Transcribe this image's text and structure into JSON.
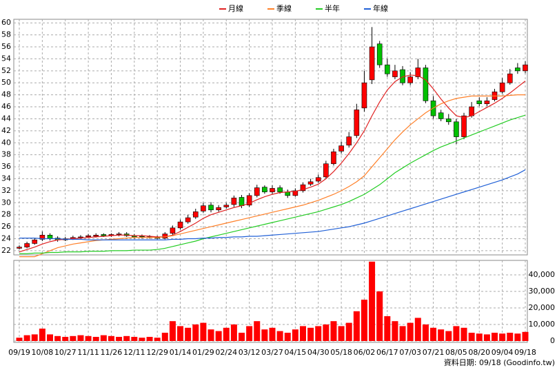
{
  "chart_data": [
    {
      "type": "candlestick",
      "open": [
        22.4,
        22.6,
        23.2,
        23.9,
        24.6,
        24.1,
        23.8,
        24.0,
        24.2,
        24.3,
        24.4,
        24.7,
        24.5,
        24.7,
        24.8,
        24.5,
        24.4,
        24.3,
        24.2,
        24.1,
        24.9,
        25.8,
        26.8,
        27.6,
        28.6,
        29.6,
        28.8,
        29.3,
        29.7,
        30.9,
        29.6,
        31.2,
        32.6,
        31.8,
        32.5,
        31.8,
        31.2,
        32.0,
        33.1,
        33.6,
        34.3,
        36.5,
        38.6,
        39.6,
        41.2,
        45.8,
        50.5,
        56.5,
        53.0,
        51.0,
        52.2,
        50.0,
        51.0,
        52.5,
        47.0,
        45.0,
        44.0,
        43.5,
        41.0,
        44.5,
        47.0,
        46.5,
        47.2,
        48.5,
        50.0,
        52.5,
        52.0
      ],
      "high": [
        22.9,
        23.5,
        24.1,
        25.2,
        24.9,
        24.4,
        24.3,
        24.5,
        24.6,
        24.8,
        24.9,
        24.9,
        24.9,
        25.1,
        25.1,
        24.8,
        24.7,
        24.6,
        24.5,
        25.1,
        26.2,
        27.2,
        28.0,
        29.0,
        30.0,
        30.1,
        29.6,
        30.0,
        31.2,
        31.3,
        31.6,
        33.0,
        32.9,
        32.9,
        32.9,
        32.2,
        32.4,
        33.4,
        34.0,
        34.7,
        37.0,
        39.0,
        40.2,
        41.8,
        46.5,
        52.0,
        59.3,
        57.0,
        54.0,
        53.0,
        52.8,
        51.8,
        54.0,
        53.0,
        47.8,
        45.5,
        44.8,
        44.0,
        45.0,
        46.8,
        47.6,
        47.6,
        49.0,
        50.8,
        52.3,
        53.3,
        53.6
      ],
      "low": [
        22.2,
        22.4,
        23.0,
        23.6,
        23.7,
        23.5,
        23.6,
        23.8,
        24.0,
        24.1,
        24.2,
        24.3,
        24.3,
        24.4,
        24.3,
        24.0,
        24.0,
        24.0,
        23.9,
        23.9,
        24.6,
        25.5,
        26.5,
        27.3,
        28.3,
        28.4,
        28.5,
        29.0,
        29.3,
        29.1,
        29.3,
        30.9,
        31.5,
        31.4,
        31.5,
        30.8,
        31.0,
        31.7,
        32.8,
        33.3,
        34.0,
        36.2,
        38.2,
        39.2,
        40.8,
        45.2,
        49.8,
        52.5,
        51.0,
        50.6,
        49.6,
        49.6,
        50.6,
        46.6,
        44.0,
        43.6,
        43.0,
        39.8,
        40.6,
        44.2,
        46.1,
        46.1,
        46.9,
        48.2,
        49.7,
        51.5,
        51.6
      ],
      "close": [
        22.6,
        23.2,
        23.8,
        24.6,
        24.0,
        23.8,
        24.0,
        24.2,
        24.3,
        24.5,
        24.6,
        24.5,
        24.7,
        24.8,
        24.5,
        24.3,
        24.3,
        24.2,
        24.1,
        24.8,
        25.8,
        26.8,
        27.5,
        28.5,
        29.5,
        28.8,
        29.2,
        29.6,
        30.8,
        29.5,
        31.2,
        32.5,
        31.8,
        32.4,
        31.8,
        31.2,
        32.0,
        33.0,
        33.5,
        34.2,
        36.5,
        38.5,
        39.5,
        41.0,
        45.5,
        50.0,
        56.0,
        53.0,
        51.5,
        52.0,
        50.0,
        51.0,
        52.5,
        47.0,
        44.5,
        44.0,
        43.5,
        41.0,
        44.5,
        46.0,
        46.5,
        47.0,
        48.5,
        50.0,
        51.5,
        52.0,
        53.0
      ],
      "up_color": "#ff0000",
      "down_color": "#00c000",
      "series": [
        {
          "name": "月線",
          "color": "#e02020",
          "values": [
            21.8,
            22.2,
            22.6,
            23.1,
            23.5,
            23.8,
            23.9,
            24.0,
            24.1,
            24.2,
            24.3,
            24.4,
            24.5,
            24.6,
            24.6,
            24.5,
            24.5,
            24.4,
            24.3,
            24.3,
            24.6,
            25.2,
            25.9,
            26.6,
            27.4,
            28.0,
            28.4,
            28.8,
            29.2,
            29.5,
            29.9,
            30.5,
            31.0,
            31.4,
            31.7,
            31.8,
            31.9,
            32.2,
            32.6,
            33.1,
            34.0,
            35.2,
            36.6,
            38.2,
            40.0,
            42.0,
            44.5,
            46.8,
            48.8,
            50.2,
            51.0,
            51.3,
            51.2,
            50.5,
            49.0,
            47.3,
            45.8,
            44.5,
            44.2,
            44.5,
            45.2,
            45.9,
            46.6,
            47.4,
            48.3,
            49.3,
            50.3
          ]
        },
        {
          "name": "季線",
          "color": "#ff7f27",
          "values": [
            21.0,
            21.0,
            21.0,
            21.5,
            22.0,
            22.5,
            22.8,
            23.1,
            23.3,
            23.5,
            23.7,
            23.8,
            23.9,
            24.0,
            24.1,
            24.2,
            24.2,
            24.2,
            24.2,
            24.3,
            24.5,
            24.8,
            25.1,
            25.4,
            25.7,
            26.0,
            26.3,
            26.6,
            26.9,
            27.2,
            27.5,
            27.8,
            28.1,
            28.4,
            28.7,
            29.0,
            29.3,
            29.6,
            30.0,
            30.4,
            30.9,
            31.4,
            32.0,
            32.7,
            33.5,
            34.5,
            36.0,
            37.5,
            39.0,
            40.5,
            41.8,
            43.0,
            44.0,
            45.0,
            45.8,
            46.5,
            47.0,
            47.4,
            47.6,
            47.8,
            47.8,
            47.8,
            47.8,
            47.8,
            47.9,
            48.0,
            48.0
          ]
        },
        {
          "name": "半年",
          "color": "#22cc22",
          "values": [
            21.5,
            21.5,
            21.6,
            21.6,
            21.7,
            21.7,
            21.8,
            21.8,
            21.8,
            21.9,
            21.9,
            21.9,
            22.0,
            22.0,
            22.0,
            22.1,
            22.1,
            22.1,
            22.2,
            22.4,
            22.7,
            23.0,
            23.3,
            23.6,
            24.0,
            24.3,
            24.6,
            24.9,
            25.2,
            25.5,
            25.8,
            26.1,
            26.4,
            26.7,
            27.0,
            27.3,
            27.6,
            27.9,
            28.2,
            28.5,
            28.9,
            29.3,
            29.7,
            30.2,
            30.8,
            31.4,
            32.2,
            33.0,
            34.0,
            35.0,
            35.8,
            36.6,
            37.3,
            38.0,
            38.7,
            39.3,
            39.8,
            40.3,
            40.8,
            41.3,
            41.8,
            42.3,
            42.8,
            43.3,
            43.8,
            44.2,
            44.6
          ]
        },
        {
          "name": "年線",
          "color": "#1f5fd6",
          "values": [
            24.1,
            24.1,
            24.1,
            24.0,
            24.0,
            24.0,
            23.9,
            23.9,
            23.9,
            23.8,
            23.8,
            23.8,
            23.8,
            23.8,
            23.8,
            23.8,
            23.8,
            23.8,
            23.8,
            23.8,
            23.9,
            23.9,
            24.0,
            24.0,
            24.1,
            24.1,
            24.2,
            24.2,
            24.3,
            24.3,
            24.4,
            24.4,
            24.5,
            24.6,
            24.7,
            24.8,
            24.9,
            25.0,
            25.1,
            25.2,
            25.4,
            25.6,
            25.8,
            26.0,
            26.3,
            26.6,
            27.0,
            27.4,
            27.8,
            28.2,
            28.6,
            29.0,
            29.4,
            29.8,
            30.2,
            30.6,
            31.0,
            31.4,
            31.8,
            32.2,
            32.6,
            33.0,
            33.4,
            33.8,
            34.3,
            34.8,
            35.5
          ]
        }
      ],
      "ylim": [
        21.3,
        60.6
      ],
      "yticks": [
        22,
        24,
        26,
        28,
        30,
        32,
        34,
        36,
        38,
        40,
        42,
        44,
        46,
        48,
        50,
        52,
        54,
        56,
        58,
        60
      ],
      "grid": true,
      "legend": "top"
    },
    {
      "type": "bar",
      "categories": [
        "09/19",
        null,
        null,
        "10/08",
        null,
        null,
        "10/27",
        null,
        null,
        "11/11",
        null,
        null,
        "11/26",
        null,
        null,
        "12/11",
        null,
        null,
        "12/29",
        null,
        null,
        "01/14",
        null,
        null,
        "01/29",
        null,
        null,
        "02/24",
        null,
        null,
        "03/12",
        null,
        null,
        "03/27",
        null,
        null,
        "04/15",
        null,
        null,
        "04/30",
        null,
        null,
        "05/18",
        null,
        null,
        "06/02",
        null,
        null,
        "06/17",
        null,
        null,
        "07/03",
        null,
        null,
        "07/21",
        null,
        null,
        "08/05",
        null,
        null,
        "08/20",
        null,
        null,
        "09/04",
        null,
        null,
        "09/18"
      ],
      "values": [
        2000,
        3500,
        4000,
        7500,
        4000,
        3000,
        2500,
        3000,
        3500,
        3000,
        2500,
        3500,
        3000,
        2500,
        3000,
        2500,
        2000,
        2500,
        2000,
        5000,
        12000,
        9000,
        8000,
        10000,
        11000,
        7000,
        6000,
        8000,
        10000,
        5000,
        9000,
        12000,
        7000,
        8000,
        6000,
        5000,
        7000,
        9000,
        8000,
        9000,
        10000,
        12000,
        9000,
        11000,
        18000,
        25000,
        48000,
        30000,
        15000,
        12000,
        9000,
        11000,
        14000,
        10000,
        8000,
        7000,
        6000,
        9000,
        8000,
        5000,
        4500,
        4000,
        5000,
        4500,
        5000,
        4500,
        5500
      ],
      "color": "#ff0000",
      "ylim": [
        0,
        48750
      ],
      "yticks": [
        0,
        {
          "value": 10000,
          "label": "10,000"
        },
        {
          "value": 20000,
          "label": "20,000"
        },
        {
          "value": 30000,
          "label": "30,000"
        },
        {
          "value": 40000,
          "label": "40,000"
        }
      ],
      "grid": true,
      "footer": "資料日期: 09/18 (Goodinfo.tw)"
    }
  ]
}
